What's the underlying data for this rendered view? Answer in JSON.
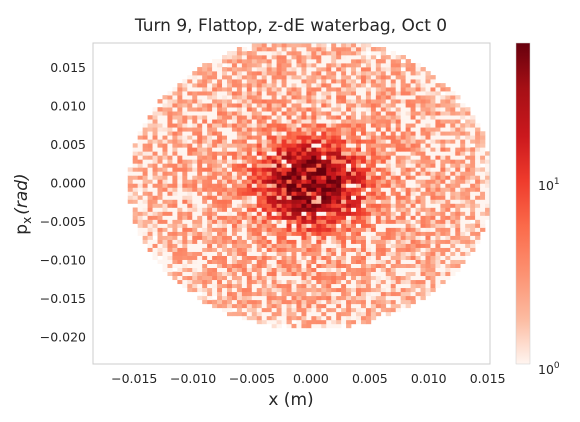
{
  "chart_data": {
    "type": "heatmap",
    "title": "Turn 9, Flattop, z-dE waterbag, Oct 0",
    "xlabel": "x (m)",
    "ylabel_main": "p",
    "ylabel_sub": "x",
    "ylabel_unit": "(rad)",
    "xlim": [
      -0.0185,
      0.0152
    ],
    "ylim": [
      -0.0235,
      0.0182
    ],
    "x_ticks": [
      -0.015,
      -0.01,
      -0.005,
      0.0,
      0.005,
      0.01,
      0.015
    ],
    "x_tick_labels": [
      "−0.015",
      "−0.010",
      "−0.005",
      "0.000",
      "0.005",
      "0.010",
      "0.015"
    ],
    "y_ticks": [
      0.015,
      0.01,
      0.005,
      0.0,
      -0.005,
      -0.01,
      -0.015,
      -0.02
    ],
    "y_tick_labels": [
      "0.015",
      "0.010",
      "0.005",
      "0.000",
      "−0.005",
      "−0.010",
      "−0.015",
      "−0.020"
    ],
    "grid": false,
    "colorbar": {
      "scale": "log",
      "range": [
        1,
        45
      ],
      "ticks": [
        1,
        10
      ],
      "tick_base": "10",
      "tick_exponents": [
        "0",
        "1"
      ],
      "colormap": [
        "#fff5f0",
        "#fcbba1",
        "#fc9272",
        "#fb6a4a",
        "#ef3b2c",
        "#cb181d",
        "#a50f15",
        "#67000d"
      ]
    },
    "distribution": {
      "core_center": [
        0.0,
        0.0
      ],
      "core_sigma_x": 0.0022,
      "core_sigma_y": 0.0028,
      "core_peak_count": 45,
      "halo_radius_x": 0.0155,
      "halo_radius_y": 0.019,
      "halo_peak_count": 3,
      "bins_x": 80,
      "bins_y": 80
    }
  }
}
